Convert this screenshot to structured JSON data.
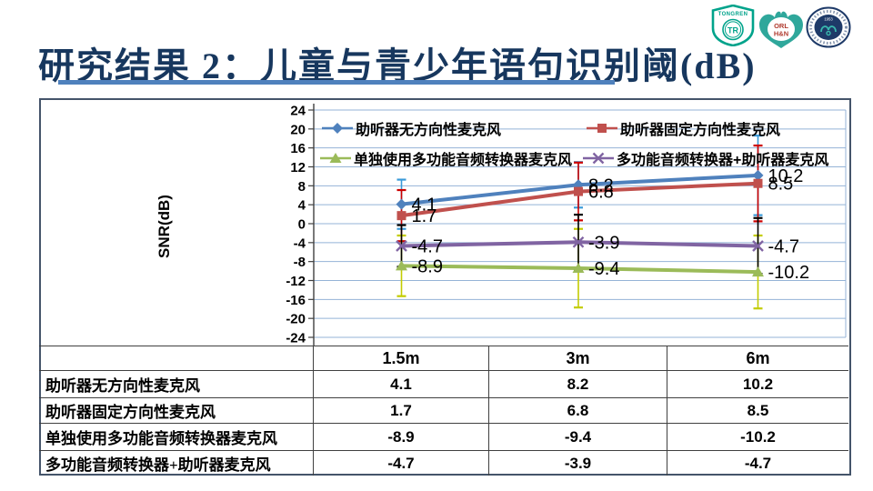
{
  "header": {
    "title": "研究结果 2：儿童与青少年语句识别阈(dB)",
    "logos": [
      {
        "name": "tongren-shield",
        "text": "TONGREN",
        "monogram": "TR"
      },
      {
        "name": "orl-han",
        "line1": "ORL",
        "line2": "H&N"
      },
      {
        "name": "hospital-emblem",
        "text": "1953"
      }
    ]
  },
  "chart_data": {
    "type": "line",
    "categories": [
      "1.5m",
      "3m",
      "6m"
    ],
    "series": [
      {
        "name": "助听器无方向性麦克风",
        "values": [
          4.1,
          8.2,
          10.2
        ],
        "color": "#4F81BD",
        "marker": "diamond",
        "error_color": "#3A9AD9",
        "error_bars": [
          [
            5.2,
            5.2
          ],
          [
            4.8,
            4.8
          ],
          [
            8.4,
            8.4
          ]
        ]
      },
      {
        "name": "助听器固定方向性麦克风",
        "values": [
          1.7,
          6.8,
          8.5
        ],
        "color": "#C0504D",
        "marker": "square",
        "error_color": "#CC0000",
        "error_bars": [
          [
            5.4,
            5.4
          ],
          [
            6.1,
            6.1
          ],
          [
            8.0,
            8.0
          ]
        ]
      },
      {
        "name": "单独使用多功能音频转换器麦克风",
        "values": [
          -8.9,
          -9.4,
          -10.2
        ],
        "color": "#9BBB59",
        "marker": "triangle",
        "error_color": "#C3CC00",
        "error_bars": [
          [
            6.4,
            6.4
          ],
          [
            8.3,
            8.3
          ],
          [
            7.7,
            7.7
          ]
        ]
      },
      {
        "name": "多功能音频转换器+助听器麦克风",
        "values": [
          -4.7,
          -3.9,
          -4.7
        ],
        "color": "#8064A2",
        "marker": "x",
        "error_color": "#000000",
        "error_bars": [
          [
            4.4,
            4.4
          ],
          [
            5.8,
            5.8
          ],
          [
            5.9,
            5.9
          ]
        ]
      }
    ],
    "ylabel": "SNR(dB)",
    "ylim": [
      -24,
      24
    ],
    "ytick_step": 4,
    "grid": true,
    "legend_position": "top-inside",
    "data_labels": true
  },
  "table": {
    "header": [
      "",
      "1.5m",
      "3m",
      "6m"
    ],
    "rows": [
      {
        "label": "助听器无方向性麦克风",
        "values": [
          "4.1",
          "8.2",
          "10.2"
        ]
      },
      {
        "label": "助听器固定方向性麦克风",
        "values": [
          "1.7",
          "6.8",
          "8.5"
        ]
      },
      {
        "label": "单独使用多功能音频转换器麦克风",
        "values": [
          "-8.9",
          "-9.4",
          "-10.2"
        ]
      },
      {
        "label": "多功能音频转换器+助听器麦克风",
        "values": [
          "-4.7",
          "-3.9",
          "-4.7"
        ]
      }
    ]
  },
  "colors": {
    "title": "#17375E",
    "underline": "#4F81BD",
    "grid": "#95B3D7",
    "axis": "#404040",
    "table_border": "#404040",
    "panel_border": "#44546A",
    "logo_green": "#00A38B",
    "logo_teal": "#2FA79B",
    "logo_navy": "#1E3A68",
    "logo_red": "#B03A2E"
  }
}
